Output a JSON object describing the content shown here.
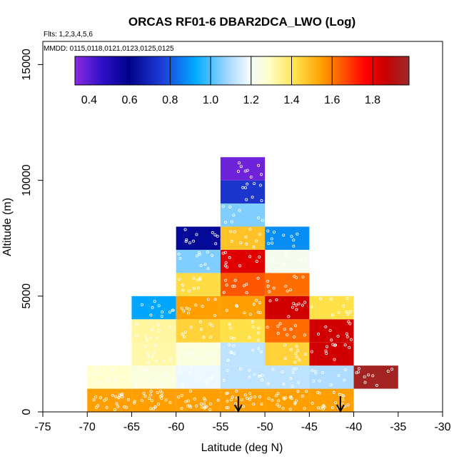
{
  "chart_data": {
    "type": "heatmap",
    "title": "ORCAS RF01-6 DBAR2DCA_LWO (Log)",
    "subtitle_flights": "Flts: 1,2,3,4,5,6",
    "subtitle_dates": "MMDD: 0115,0118,0121,0123,0125,0125",
    "xlabel": "Latitude (deg N)",
    "ylabel": "Altitude (m)",
    "xlim": [
      -75,
      -30
    ],
    "ylim": [
      0,
      16000
    ],
    "x_ticks": [
      "-75",
      "-70",
      "-65",
      "-60",
      "-55",
      "-50",
      "-45",
      "-40",
      "-35",
      "-30"
    ],
    "x_tick_values": [
      -75,
      -70,
      -65,
      -60,
      -55,
      -50,
      -45,
      -40,
      -35,
      -30
    ],
    "y_ticks": [
      "0",
      "5000",
      "10000",
      "15000"
    ],
    "y_tick_values": [
      0,
      5000,
      10000,
      15000
    ],
    "colorbar": {
      "range": [
        0.33,
        1.98
      ],
      "tick_labels": [
        "0.4",
        "0.6",
        "0.8",
        "1.0",
        "1.2",
        "1.4",
        "1.6",
        "1.8"
      ],
      "tick_values": [
        0.4,
        0.6,
        0.8,
        1.0,
        1.2,
        1.4,
        1.6,
        1.8
      ],
      "boundaries": [
        0.6,
        0.8,
        1.0,
        1.2,
        1.4,
        1.6,
        1.8
      ]
    },
    "bin_width_deg": 5,
    "bin_height_m": 1000,
    "cells": [
      {
        "lat": -70,
        "alt": 0,
        "value": 1.55
      },
      {
        "lat": -65,
        "alt": 0,
        "value": 1.55
      },
      {
        "lat": -60,
        "alt": 0,
        "value": 1.55
      },
      {
        "lat": -55,
        "alt": 0,
        "value": 1.55
      },
      {
        "lat": -50,
        "alt": 0,
        "value": 1.55
      },
      {
        "lat": -45,
        "alt": 0,
        "value": 1.55
      },
      {
        "lat": -70,
        "alt": 1000,
        "value": 1.28
      },
      {
        "lat": -65,
        "alt": 1000,
        "value": 1.25
      },
      {
        "lat": -60,
        "alt": 1000,
        "value": 1.18
      },
      {
        "lat": -55,
        "alt": 1000,
        "value": 1.12
      },
      {
        "lat": -50,
        "alt": 1000,
        "value": 1.12
      },
      {
        "lat": -45,
        "alt": 1000,
        "value": 1.1
      },
      {
        "lat": -40,
        "alt": 1000,
        "value": 1.96
      },
      {
        "lat": -65,
        "alt": 2000,
        "value": 1.32
      },
      {
        "lat": -60,
        "alt": 2000,
        "value": 1.25
      },
      {
        "lat": -55,
        "alt": 2000,
        "value": 1.12
      },
      {
        "lat": -50,
        "alt": 2000,
        "value": 1.45
      },
      {
        "lat": -45,
        "alt": 2000,
        "value": 1.85
      },
      {
        "lat": -65,
        "alt": 3000,
        "value": 1.33
      },
      {
        "lat": -60,
        "alt": 3000,
        "value": 1.45
      },
      {
        "lat": -55,
        "alt": 3000,
        "value": 1.42
      },
      {
        "lat": -50,
        "alt": 3000,
        "value": 1.62
      },
      {
        "lat": -45,
        "alt": 3000,
        "value": 1.85
      },
      {
        "lat": -65,
        "alt": 4000,
        "value": 0.92
      },
      {
        "lat": -60,
        "alt": 4000,
        "value": 1.55
      },
      {
        "lat": -55,
        "alt": 4000,
        "value": 1.55
      },
      {
        "lat": -50,
        "alt": 4000,
        "value": 1.85
      },
      {
        "lat": -45,
        "alt": 4000,
        "value": 1.42
      },
      {
        "lat": -60,
        "alt": 5000,
        "value": 1.43
      },
      {
        "lat": -55,
        "alt": 5000,
        "value": 1.65
      },
      {
        "lat": -50,
        "alt": 5000,
        "value": 1.62
      },
      {
        "lat": -60,
        "alt": 6000,
        "value": 1.05
      },
      {
        "lat": -55,
        "alt": 6000,
        "value": 1.82
      },
      {
        "lat": -50,
        "alt": 6000,
        "value": 1.22
      },
      {
        "lat": -60,
        "alt": 7000,
        "value": 0.62
      },
      {
        "lat": -55,
        "alt": 7000,
        "value": 1.48
      },
      {
        "lat": -50,
        "alt": 7000,
        "value": 0.88
      },
      {
        "lat": -55,
        "alt": 8000,
        "value": 1.05
      },
      {
        "lat": -55,
        "alt": 9000,
        "value": 0.74
      },
      {
        "lat": -55,
        "alt": 10000,
        "value": 0.37
      }
    ],
    "arrows_lat": [
      -53.0,
      -41.5
    ],
    "colors": {
      "arrow": "#000000",
      "sample_point": "#ffffff",
      "frame": "#000000"
    }
  }
}
